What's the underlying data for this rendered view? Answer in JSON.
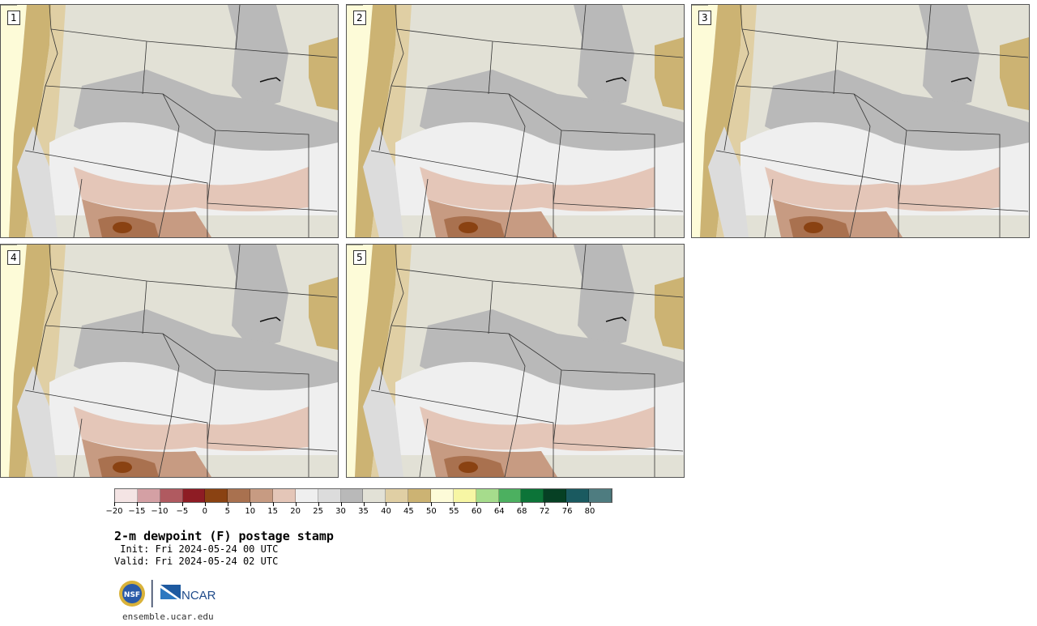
{
  "panels": [
    {
      "label": "1"
    },
    {
      "label": "2"
    },
    {
      "label": "3"
    },
    {
      "label": "4"
    },
    {
      "label": "5"
    }
  ],
  "legend": {
    "colors": [
      "#f4e4e4",
      "#d4a0a4",
      "#b05a60",
      "#8e1c24",
      "#8a4212",
      "#a9714f",
      "#c79b82",
      "#e4c6b8",
      "#efefef",
      "#dcdcdc",
      "#b9b9b9",
      "#e2e1d6",
      "#e0cfa4",
      "#ccb373",
      "#fdfbd8",
      "#f7f6a4",
      "#a6dc8c",
      "#4cb060",
      "#0c7438",
      "#064024",
      "#1a5a60",
      "#4e7c80"
    ],
    "ticks": [
      "−20",
      "−15",
      "−10",
      "−5",
      "0",
      "5",
      "10",
      "15",
      "20",
      "25",
      "30",
      "35",
      "40",
      "45",
      "50",
      "55",
      "60",
      "64",
      "68",
      "72",
      "76",
      "80"
    ]
  },
  "title": "2-m dewpoint (F) postage stamp",
  "init": " Init: Fri 2024-05-24 00 UTC",
  "valid": "Valid: Fri 2024-05-24 02 UTC",
  "logos": {
    "nsf": "NSF",
    "ncar": "NCAR"
  },
  "url": "ensemble.ucar.edu"
}
